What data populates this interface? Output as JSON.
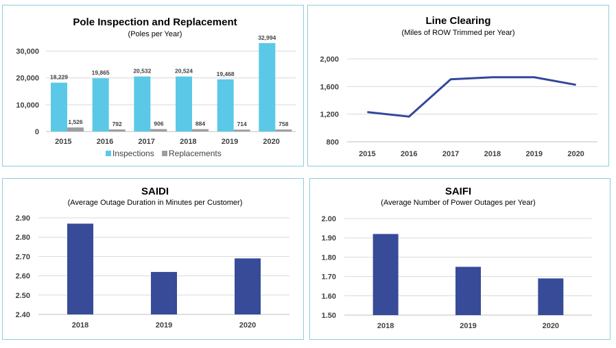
{
  "colors": {
    "inspections": "#5bc8e8",
    "replacements": "#9e9e9e",
    "line": "#33469a",
    "saidi_bar": "#374b99",
    "saifi_bar": "#374b99",
    "border": "#8ecbe0"
  },
  "chart_data": [
    {
      "id": "pole",
      "type": "bar",
      "title": "Pole Inspection and Replacement",
      "subtitle": "(Poles per Year)",
      "categories": [
        "2015",
        "2016",
        "2017",
        "2018",
        "2019",
        "2020"
      ],
      "series": [
        {
          "name": "Inspections",
          "values": [
            18229,
            19865,
            20532,
            20524,
            19468,
            32994
          ],
          "labels": [
            "18,229",
            "19,865",
            "20,532",
            "20,524",
            "19,468",
            "32,994"
          ]
        },
        {
          "name": "Replacements",
          "values": [
            1526,
            792,
            906,
            884,
            714,
            758
          ],
          "labels": [
            "1,526",
            "792",
            "906",
            "884",
            "714",
            "758"
          ]
        }
      ],
      "ylim": [
        0,
        35000
      ],
      "yticks": [
        0,
        10000,
        20000,
        30000
      ],
      "ytick_labels": [
        "0",
        "10,000",
        "20,000",
        "30,000"
      ],
      "legend": "bottom",
      "grid": true
    },
    {
      "id": "line",
      "type": "line",
      "title": "Line Clearing",
      "subtitle": "(Miles of ROW Trimmed per Year)",
      "categories": [
        "2015",
        "2016",
        "2017",
        "2018",
        "2019",
        "2020"
      ],
      "values": [
        1230,
        1165,
        1705,
        1735,
        1735,
        1625
      ],
      "ylim": [
        800,
        2000
      ],
      "yticks": [
        800,
        1200,
        1600,
        2000
      ],
      "ytick_labels": [
        "800",
        "1,200",
        "1,600",
        "2,000"
      ],
      "grid": true
    },
    {
      "id": "saidi",
      "type": "bar",
      "title": "SAIDI",
      "subtitle": "(Average Outage Duration in Minutes per Customer)",
      "categories": [
        "2018",
        "2019",
        "2020"
      ],
      "values": [
        2.87,
        2.62,
        2.69
      ],
      "ylim": [
        2.4,
        2.9
      ],
      "yticks": [
        2.4,
        2.5,
        2.6,
        2.7,
        2.8,
        2.9
      ],
      "ytick_labels": [
        "2.40",
        "2.50",
        "2.60",
        "2.70",
        "2.80",
        "2.90"
      ],
      "grid": true
    },
    {
      "id": "saifi",
      "type": "bar",
      "title": "SAIFI",
      "subtitle": "(Average Number of Power Outages per Year)",
      "categories": [
        "2018",
        "2019",
        "2020"
      ],
      "values": [
        1.92,
        1.75,
        1.69
      ],
      "ylim": [
        1.5,
        2.0
      ],
      "yticks": [
        1.5,
        1.6,
        1.7,
        1.8,
        1.9,
        2.0
      ],
      "ytick_labels": [
        "1.50",
        "1.60",
        "1.70",
        "1.80",
        "1.90",
        "2.00"
      ],
      "grid": true
    }
  ]
}
